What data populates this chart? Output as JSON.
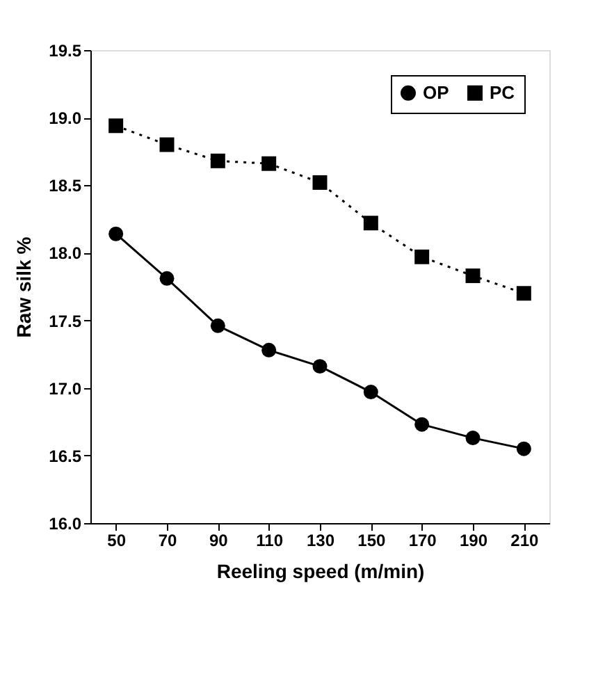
{
  "chart_data": {
    "type": "line",
    "xlabel": "Reeling speed (m/min)",
    "ylabel": "Raw silk %",
    "categories": [
      "50",
      "70",
      "90",
      "110",
      "130",
      "150",
      "170",
      "190",
      "210"
    ],
    "series": [
      {
        "name": "OP",
        "color": "#000000",
        "marker": "circle",
        "line_style": "solid",
        "values": [
          18.14,
          17.81,
          17.46,
          17.28,
          17.16,
          16.97,
          16.73,
          16.63,
          16.55
        ]
      },
      {
        "name": "PC",
        "color": "#000000",
        "marker": "square",
        "line_style": "dotted",
        "values": [
          18.94,
          18.8,
          18.68,
          18.66,
          18.52,
          18.22,
          17.97,
          17.83,
          17.7
        ]
      }
    ],
    "ylim": [
      16.0,
      19.5
    ],
    "yticks": [
      {
        "value": 16.0,
        "label": "16.0"
      },
      {
        "value": 16.5,
        "label": "16.5"
      },
      {
        "value": 17.0,
        "label": "17.0"
      },
      {
        "value": 17.5,
        "label": "17.5"
      },
      {
        "value": 18.0,
        "label": "18.0"
      },
      {
        "value": 18.5,
        "label": "18.5"
      },
      {
        "value": 19.0,
        "label": "19.0"
      },
      {
        "value": 19.5,
        "label": "19.5"
      }
    ],
    "grid": false,
    "legend": "top right"
  }
}
